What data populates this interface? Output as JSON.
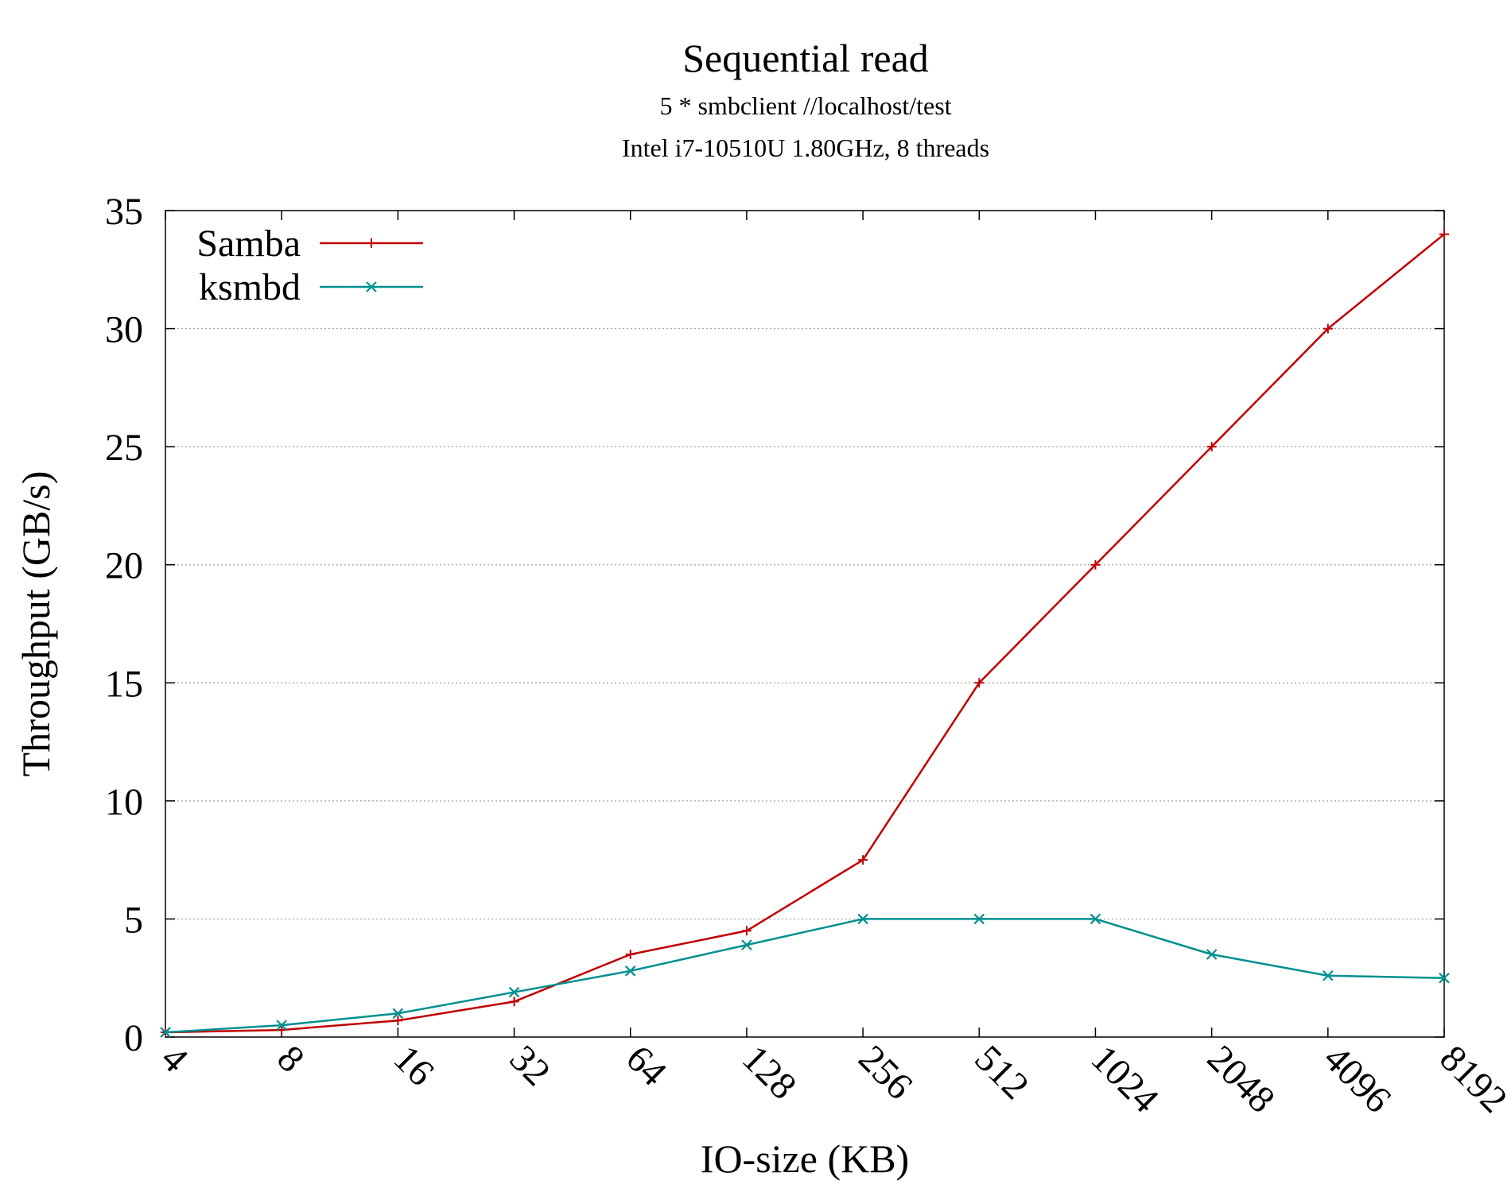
{
  "chart_data": {
    "type": "line",
    "title": "Sequential read",
    "subtitle_lines": [
      "5 * smbclient //localhost/test",
      "Intel i7-10510U 1.80GHz, 8 threads"
    ],
    "xlabel": "IO-size (KB)",
    "ylabel": "Throughput (GB/s)",
    "categories": [
      "4",
      "8",
      "16",
      "32",
      "64",
      "128",
      "256",
      "512",
      "1024",
      "2048",
      "4096",
      "8192"
    ],
    "ylim": [
      0,
      35
    ],
    "yticks": [
      "0",
      "5",
      "10",
      "15",
      "20",
      "25",
      "30",
      "35"
    ],
    "grid": "horizontal dotted",
    "legend_position": "top-left",
    "series": [
      {
        "name": "Samba",
        "color": "#c00000",
        "marker": "plus",
        "values": [
          0.2,
          0.3,
          0.7,
          1.5,
          3.5,
          4.5,
          7.5,
          15,
          20,
          25,
          30,
          34
        ]
      },
      {
        "name": "ksmbd",
        "color": "#009090",
        "marker": "cross",
        "values": [
          0.2,
          0.5,
          1.0,
          1.9,
          2.8,
          3.9,
          5.0,
          5.0,
          5.0,
          3.5,
          2.6,
          2.5
        ]
      }
    ]
  }
}
